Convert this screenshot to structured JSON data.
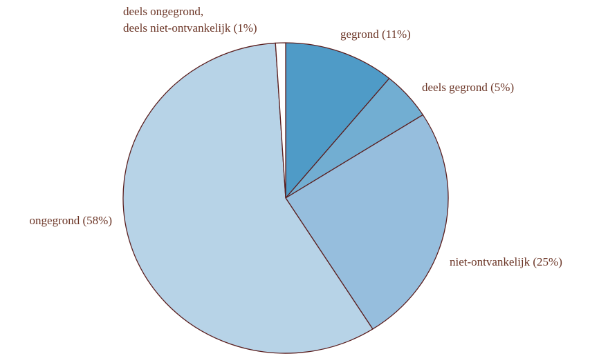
{
  "chart_data": {
    "type": "pie",
    "categories": [
      "gegrond",
      "deels gegrond",
      "niet-ontvankelijk",
      "ongegrond",
      "deels ongegrond,\ndeels niet-ontvankelijk"
    ],
    "values": [
      11,
      5,
      25,
      58,
      1
    ],
    "value_labels": [
      "(11%)",
      "(5%)",
      "(25%)",
      "(58%)",
      "(1%)"
    ],
    "colors": [
      "#4f9bc7",
      "#72aed2",
      "#96bedd",
      "#b7d3e7",
      "#ffffff"
    ]
  }
}
